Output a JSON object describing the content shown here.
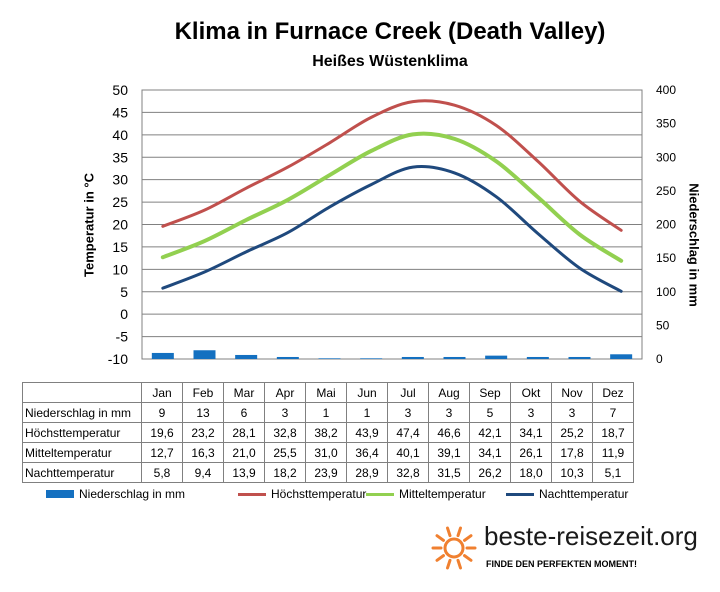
{
  "chart_data": {
    "type": "line",
    "title": "Klima in Furnace Creek (Death Valley)",
    "subtitle": "Heißes Wüstenklima",
    "ylabel": "Temperatur in °C",
    "y2label": "Niederschlag in mm",
    "ylim": [
      -10,
      50
    ],
    "y2lim": [
      0,
      400
    ],
    "yticks": [
      "50",
      "45",
      "40",
      "35",
      "30",
      "25",
      "20",
      "15",
      "10",
      "5",
      "0",
      "-5",
      "-10"
    ],
    "y2ticks": [
      "400",
      "350",
      "300",
      "250",
      "200",
      "150",
      "100",
      "50",
      "0"
    ],
    "categories": [
      "Jan",
      "Feb",
      "Mar",
      "Apr",
      "Mai",
      "Jun",
      "Jul",
      "Aug",
      "Sep",
      "Okt",
      "Nov",
      "Dez"
    ],
    "grid": true,
    "legend_position": "bottom",
    "series": [
      {
        "name": "Niederschlag in mm",
        "kind": "bar",
        "axis": "right",
        "color": "#1470c0",
        "values": [
          9,
          13,
          6,
          3,
          1,
          1,
          3,
          3,
          5,
          3,
          3,
          7
        ],
        "labels": [
          "9",
          "13",
          "6",
          "3",
          "1",
          "1",
          "3",
          "3",
          "5",
          "3",
          "3",
          "7"
        ]
      },
      {
        "name": "Höchsttemperatur",
        "kind": "line",
        "axis": "left",
        "color": "#c0504d",
        "values": [
          19.6,
          23.2,
          28.1,
          32.8,
          38.2,
          43.9,
          47.4,
          46.6,
          42.1,
          34.1,
          25.2,
          18.7
        ],
        "labels": [
          "19,6",
          "23,2",
          "28,1",
          "32,8",
          "38,2",
          "43,9",
          "47,4",
          "46,6",
          "42,1",
          "34,1",
          "25,2",
          "18,7"
        ]
      },
      {
        "name": "Mitteltemperatur",
        "kind": "line",
        "axis": "left",
        "color": "#92d050",
        "values": [
          12.7,
          16.3,
          21.0,
          25.5,
          31.0,
          36.4,
          40.1,
          39.1,
          34.1,
          26.1,
          17.8,
          11.9
        ],
        "labels": [
          "12,7",
          "16,3",
          "21,0",
          "25,5",
          "31,0",
          "36,4",
          "40,1",
          "39,1",
          "34,1",
          "26,1",
          "17,8",
          "11,9"
        ]
      },
      {
        "name": "Nachttemperatur",
        "kind": "line",
        "axis": "left",
        "color": "#1f497d",
        "values": [
          5.8,
          9.4,
          13.9,
          18.2,
          23.9,
          28.9,
          32.8,
          31.5,
          26.2,
          18.0,
          10.3,
          5.1
        ],
        "labels": [
          "5,8",
          "9,4",
          "13,9",
          "18,2",
          "23,9",
          "28,9",
          "32,8",
          "31,5",
          "26,2",
          "18,0",
          "10,3",
          "5,1"
        ]
      }
    ]
  },
  "brand": {
    "name": "beste-reisezeit.org",
    "tagline": "FINDE DEN PERFEKTEN MOMENT!",
    "sun_color": "#f08030"
  }
}
